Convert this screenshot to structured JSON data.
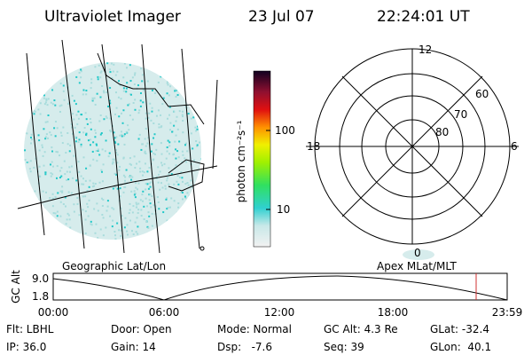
{
  "header": {
    "title": "Ultraviolet Imager",
    "date": "23 Jul 07",
    "time": "22:24:01 UT"
  },
  "colorbar": {
    "unit_label": "photon cm⁻²s⁻¹",
    "ticks": [
      "100",
      "10"
    ]
  },
  "geo_map": {
    "caption": "Geographic Lat/Lon"
  },
  "polar_map": {
    "caption": "Apex MLat/MLT",
    "mlt_labels": [
      "12",
      "18",
      "6",
      "0"
    ],
    "lat_labels": [
      "60",
      "70",
      "80"
    ]
  },
  "altitude_plot": {
    "y_label": "GC Alt",
    "y_ticks": [
      "9.0",
      "1.8"
    ],
    "x_ticks": [
      "00:00",
      "06:00",
      "12:00",
      "18:00",
      "23:59"
    ]
  },
  "footer": {
    "rows": [
      [
        "Flt: LBHL",
        "Door: Open",
        "Mode: Normal",
        "GC Alt: 4.3 Re",
        "GLat: -32.4"
      ],
      [
        "IP: 36.0",
        "Gain: 14",
        "Dsp:   -7.6",
        "Seq: 39",
        "GLon:  40.1"
      ]
    ]
  }
}
